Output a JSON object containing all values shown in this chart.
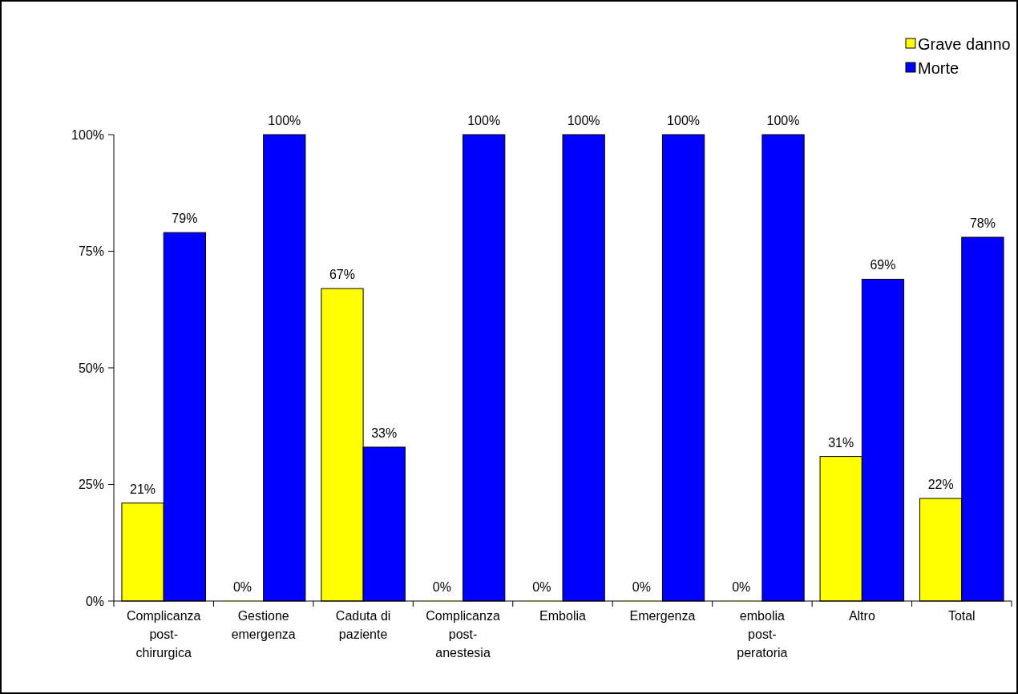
{
  "chart_data": {
    "type": "bar",
    "categories": [
      "Complicanza post-chirurgica",
      "Gestione emergenza",
      "Caduta di paziente",
      "Complicanza post-anestesia",
      "Embolia",
      "Emergenza",
      "embolia post-peratoria",
      "Altro",
      "Total"
    ],
    "series": [
      {
        "name": "Grave danno",
        "color": "#ffff00",
        "values": [
          21,
          0,
          67,
          0,
          0,
          0,
          0,
          31,
          22
        ],
        "value_labels": [
          "21%",
          "0%",
          "67%",
          "0%",
          "0%",
          "0%",
          "0%",
          "31%",
          "22%"
        ]
      },
      {
        "name": "Morte",
        "color": "#0000ff",
        "values": [
          79,
          100,
          33,
          100,
          100,
          100,
          100,
          69,
          78
        ],
        "value_labels": [
          "79%",
          "100%",
          "33%",
          "100%",
          "100%",
          "100%",
          "100%",
          "69%",
          "78%"
        ]
      }
    ],
    "ylim": [
      0,
      100
    ],
    "yticks": [
      {
        "value": 0,
        "label": "0%"
      },
      {
        "value": 25,
        "label": "25%"
      },
      {
        "value": 50,
        "label": "50%"
      },
      {
        "value": 75,
        "label": "75%"
      },
      {
        "value": 100,
        "label": "100%"
      }
    ],
    "grid": false,
    "legend": "top right"
  }
}
